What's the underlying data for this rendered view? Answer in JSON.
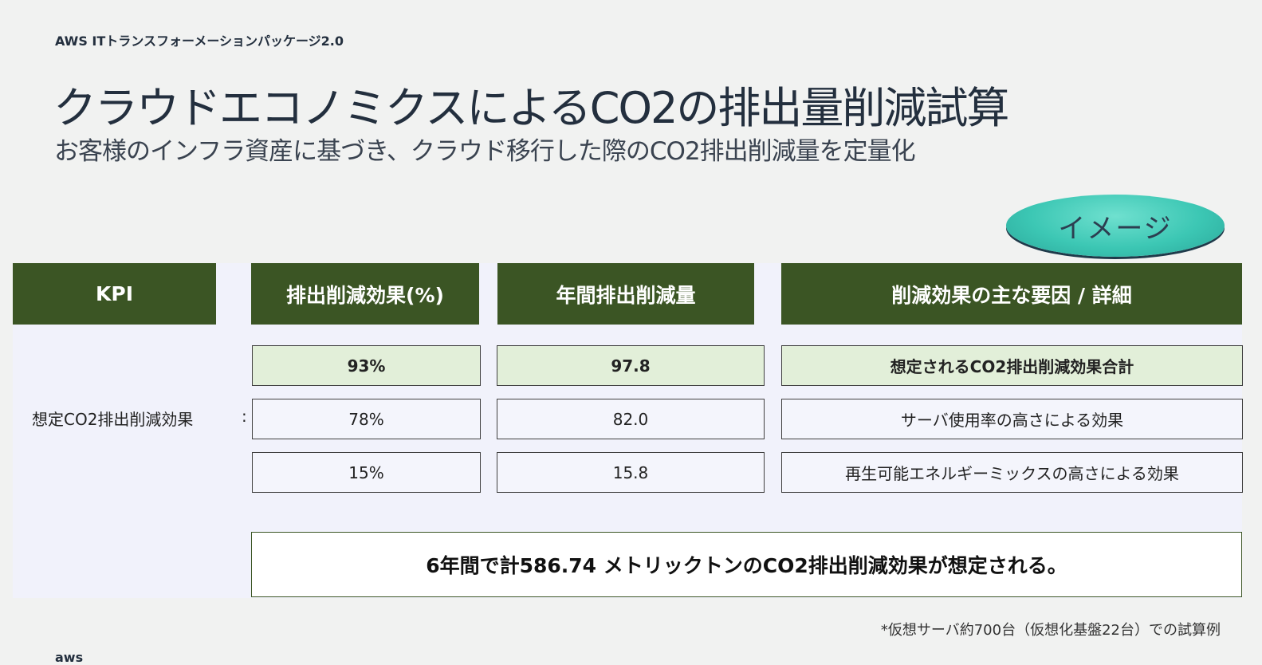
{
  "header": {
    "eyebrow": "AWS ITトランスフォーメーションパッケージ2.0",
    "title": "クラウドエコノミクスによるCO2の排出量削減試算",
    "subtitle": "お客様のインフラ資産に基づき、クラウド移行した際のCO2排出削減量を定量化"
  },
  "badge": {
    "label": "イメージ"
  },
  "table": {
    "headers": {
      "kpi": "KPI",
      "effect_pct": "排出削減効果(%)",
      "annual": "年間排出削減量",
      "detail": "削減効果の主な要因 / 詳細"
    },
    "kpi_label": "想定CO2排出削減効果",
    "kpi_colon": ":",
    "rows": [
      {
        "pct": "93%",
        "annual": "97.8",
        "detail": "想定されるCO2排出削減効果合計"
      },
      {
        "pct": "78%",
        "annual": "82.0",
        "detail": "サーバ使用率の高さによる効果"
      },
      {
        "pct": "15%",
        "annual": "15.8",
        "detail": "再生可能エネルギーミックスの高さによる効果"
      }
    ]
  },
  "summary": "6年間で計586.74 メトリックトンのCO2排出削減効果が想定される。",
  "footnote": "*仮想サーバ約700台（仮想化基盤22台）での試算例",
  "footer": {
    "logo_text": "aws"
  },
  "colors": {
    "header_green": "#3b5524",
    "highlight_green": "#e2efd9",
    "badge_teal": "#3cc7b4",
    "panel_bg": "#f1f2fb"
  }
}
